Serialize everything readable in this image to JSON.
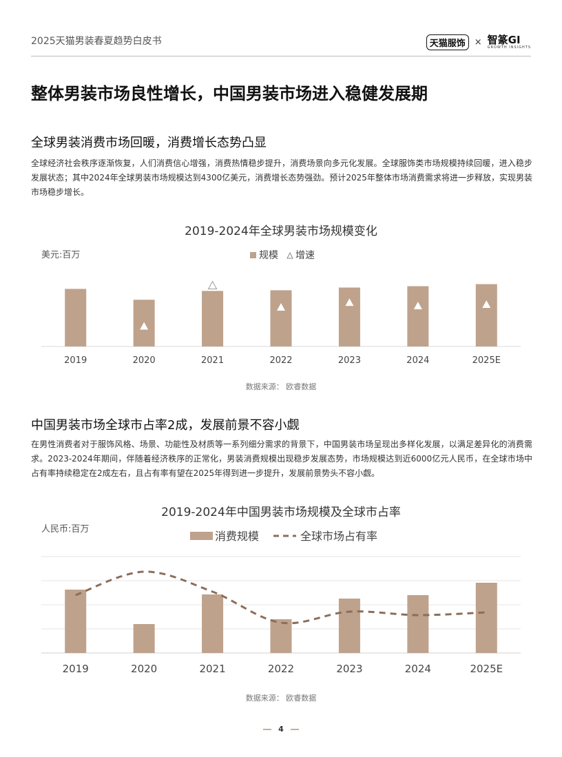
{
  "header": {
    "doc_title": "2025天猫男装春夏趋势白皮书",
    "logo_tmall": "天猫服饰",
    "logo_sep": "×",
    "logo_gi": "智篆GI",
    "logo_gi_sub": "GROWTH INSIGHTS"
  },
  "main_title": "整体男装市场良性增长，中国男装市场进入稳健发展期",
  "section1": {
    "title": "全球男装消费市场回暖，消费增长态势凸显",
    "paragraph": "全球经济社会秩序逐渐恢复，人们消费信心增强，消费热情稳步提升，消费场景向多元化发展。全球服饰类市场规模持续回暖，进入稳步发展状态；其中2024年全球男装市场规模达到4300亿美元，消费增长态势强劲。预计2025年整体市场消费需求将进一步释放，实现男装市场稳步增长。"
  },
  "section2": {
    "title": "中国男装市场全球市占率2成，发展前景不容小觑",
    "paragraph": "在男性消费者对于服饰风格、场景、功能性及材质等一系列细分需求的背景下，中国男装市场呈现出多样化发展，以满足差异化的消费需求。2023-2024年期间，伴随着经济秩序的正常化，男装消费规模出现稳步发展态势，市场规模达到近6000亿元人民币，在全球市场中占有率持续稳定在2成左右，且占有率有望在2025年得到进一步提升，发展前景势头不容小觑。"
  },
  "chart_data": [
    {
      "type": "bar",
      "title": "2019-2024年全球男装市场规模变化",
      "unit_label": "美元:百万",
      "source": "数据来源：  欧睿数据",
      "categories": [
        "2019",
        "2020",
        "2021",
        "2022",
        "2023",
        "2024",
        "2025E"
      ],
      "legend": [
        "规模",
        "增速"
      ],
      "series": [
        {
          "name": "规模",
          "values": [
            85,
            69,
            82,
            83,
            87,
            89,
            92
          ]
        },
        {
          "name": "增速",
          "values": [
            null,
            30,
            90,
            58,
            65,
            60,
            62
          ],
          "marker": "triangle"
        }
      ],
      "ylim": [
        0,
        120
      ],
      "colors": {
        "bar": "#bfa28c",
        "marker": "#ffffff"
      }
    },
    {
      "type": "bar",
      "title": "2019-2024年中国男装市场规模及全球市占率",
      "unit_label": "人民币:百万",
      "source": "数据来源：  欧睿数据",
      "categories": [
        "2019",
        "2020",
        "2021",
        "2022",
        "2023",
        "2024",
        "2025E"
      ],
      "legend": [
        "消费规模",
        "全球市场占有率"
      ],
      "series": [
        {
          "name": "消费规模",
          "values": [
            92,
            42,
            85,
            49,
            79,
            84,
            102
          ]
        },
        {
          "name": "全球市场占有率",
          "values": [
            84,
            118,
            89,
            44,
            60,
            55,
            59
          ],
          "style": "dashed-line"
        }
      ],
      "ylim": [
        0,
        140
      ],
      "grid": true,
      "colors": {
        "bar": "#bfa28c",
        "line": "#8b6e5a"
      }
    }
  ],
  "footer": {
    "page_number": "4"
  }
}
